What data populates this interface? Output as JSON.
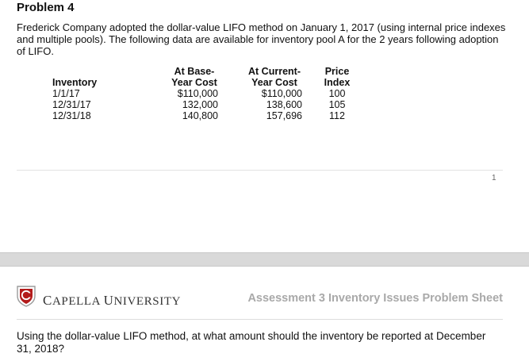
{
  "problem": {
    "title": "Problem 4",
    "paragraph": "Frederick Company adopted the dollar-value LIFO method on January 1, 2017 (using internal price indexes and multiple pools). The following data are available for inventory pool A for the 2 years following adoption of LIFO."
  },
  "table": {
    "headers": {
      "inventory": "Inventory",
      "base_line1": "At Base-",
      "base_line2": "Year Cost",
      "current_line1": "At Current-",
      "current_line2": "Year Cost",
      "index_line1": "Price",
      "index_line2": "Index"
    },
    "rows": [
      {
        "date": "1/1/17",
        "base": "$110,000",
        "current": "$110,000",
        "index": "100"
      },
      {
        "date": "12/31/17",
        "base": "132,000",
        "current": "138,600",
        "index": "105"
      },
      {
        "date": "12/31/18",
        "base": "140,800",
        "current": "157,696",
        "index": "112"
      }
    ]
  },
  "page_number": "1",
  "footer": {
    "logo_icon": "capella-shield-icon",
    "brand_first_cap": "C",
    "brand_first_rest": "APELLA ",
    "brand_second_cap": "U",
    "brand_second_rest": "NIVERSITY",
    "sheet_title": "Assessment 3 Inventory Issues Problem Sheet"
  },
  "question": "Using the dollar-value LIFO method, at what amount should the inventory be reported at December 31, 2018?"
}
